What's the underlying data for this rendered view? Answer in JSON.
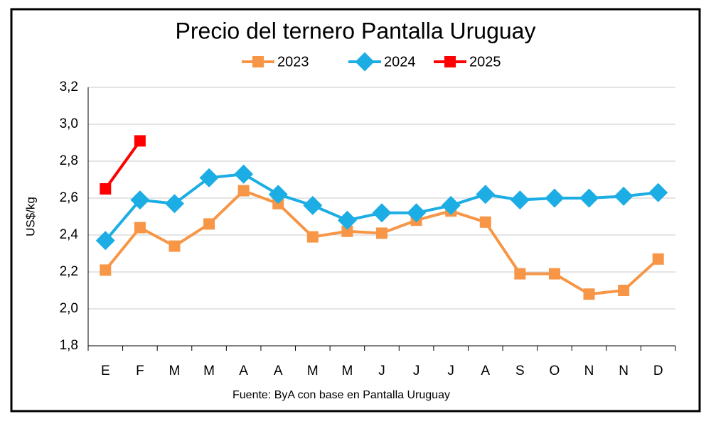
{
  "chart_data": {
    "type": "line",
    "title": "Precio del ternero Pantalla Uruguay",
    "y_label": "US$/kg",
    "source": "Fuente: ByA con base en Pantalla Uruguay",
    "categories": [
      "E",
      "F",
      "M",
      "M",
      "A",
      "A",
      "M",
      "M",
      "J",
      "J",
      "J",
      "A",
      "S",
      "O",
      "N",
      "N",
      "D"
    ],
    "series": [
      {
        "name": "2023",
        "color": "#f79646",
        "marker": "square",
        "values": [
          2.21,
          2.44,
          2.34,
          2.46,
          2.64,
          2.57,
          2.39,
          2.42,
          2.41,
          2.48,
          2.53,
          2.47,
          2.19,
          2.19,
          2.08,
          2.1,
          2.27
        ]
      },
      {
        "name": "2024",
        "color": "#1cade4",
        "marker": "diamond",
        "values": [
          2.37,
          2.59,
          2.57,
          2.71,
          2.73,
          2.62,
          2.56,
          2.48,
          2.52,
          2.52,
          2.56,
          2.62,
          2.59,
          2.6,
          2.6,
          2.61,
          2.63
        ]
      },
      {
        "name": "2025",
        "color": "#ff0000",
        "marker": "square",
        "values": [
          2.65,
          2.91,
          null,
          null,
          null,
          null,
          null,
          null,
          null,
          null,
          null,
          null,
          null,
          null,
          null,
          null,
          null
        ]
      }
    ],
    "ylim": [
      1.8,
      3.2
    ],
    "yticks": [
      {
        "value": 1.8,
        "label": "1,8"
      },
      {
        "value": 2.0,
        "label": "2,0"
      },
      {
        "value": 2.2,
        "label": "2,2"
      },
      {
        "value": 2.4,
        "label": "2,4"
      },
      {
        "value": 2.6,
        "label": "2,6"
      },
      {
        "value": 2.8,
        "label": "2,8"
      },
      {
        "value": 3.0,
        "label": "3,0"
      },
      {
        "value": 3.2,
        "label": "3,2"
      }
    ],
    "grid": true,
    "legend": "top"
  }
}
